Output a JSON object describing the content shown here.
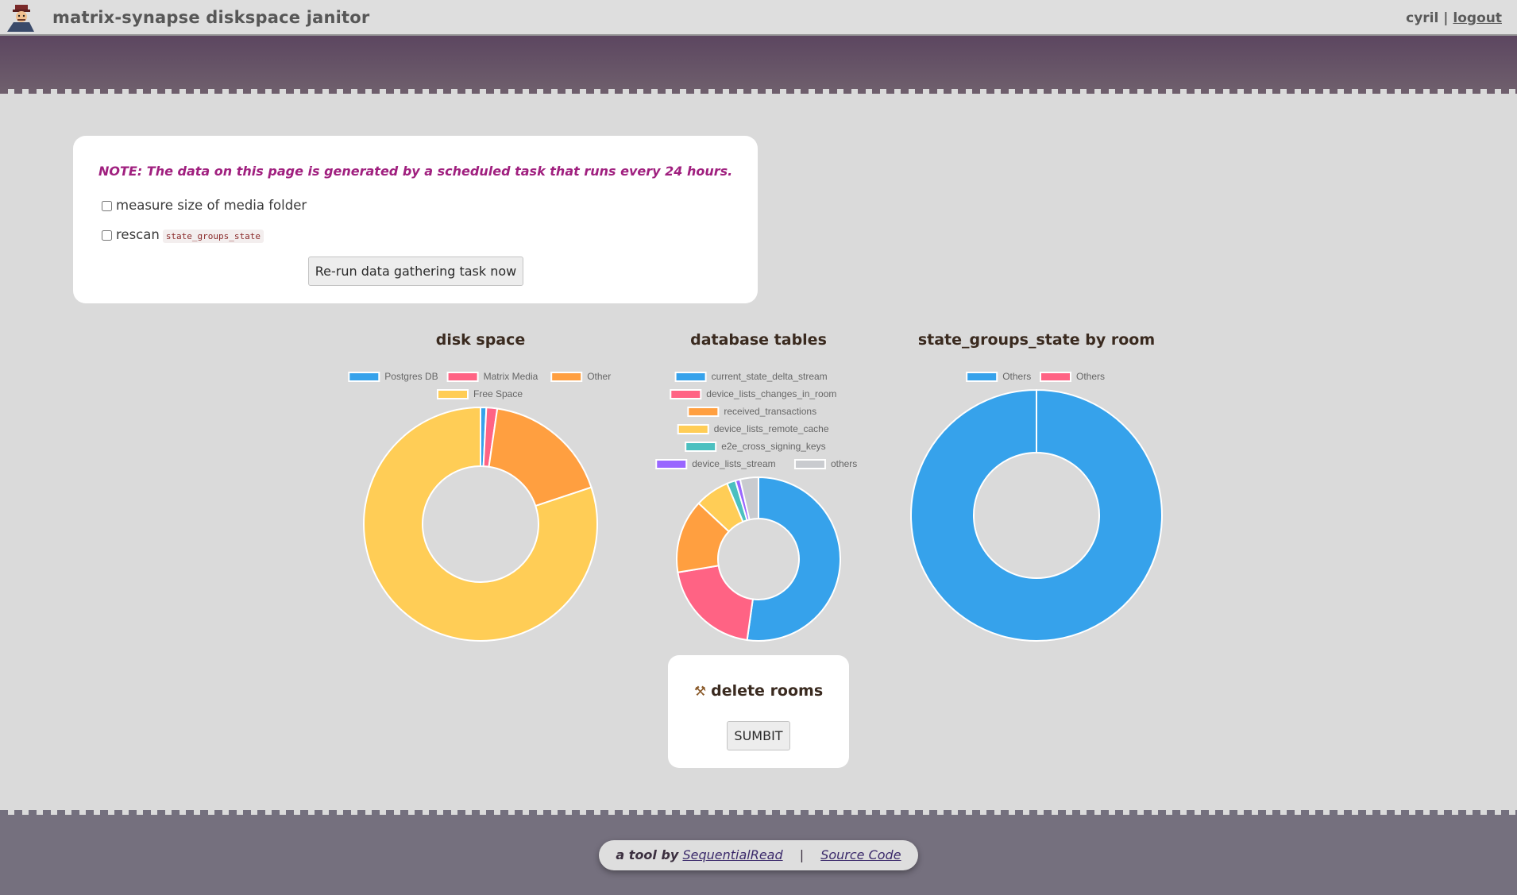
{
  "header": {
    "title": "matrix-synapse diskspace janitor",
    "user": "cyril",
    "separator": "|",
    "logout_label": "logout"
  },
  "note": {
    "text": "NOTE: The data on this page is generated by a scheduled task that runs every 24 hours.",
    "option_media": "measure size of media folder",
    "option_rescan": "rescan",
    "option_rescan_code": "state_groups_state",
    "rerun_label": "Re-run data gathering task now"
  },
  "charts": {
    "disk": {
      "title": "disk space"
    },
    "tables": {
      "title": "database tables"
    },
    "state": {
      "title": "state_groups_state by room"
    }
  },
  "chart_data": [
    {
      "type": "pie",
      "title": "disk space",
      "labels": [
        "Postgres DB",
        "Matrix Media",
        "Other",
        "Free Space"
      ],
      "values": [
        0.8,
        1.5,
        17.6,
        80.1
      ],
      "colors": [
        "#36a2eb",
        "#ff6384",
        "#ff9f40",
        "#ffcd56"
      ]
    },
    {
      "type": "pie",
      "title": "database tables",
      "labels": [
        "current_state_delta_stream",
        "device_lists_changes_in_room",
        "received_transactions",
        "device_lists_remote_cache",
        "e2e_cross_signing_keys",
        "device_lists_stream",
        "others"
      ],
      "values": [
        49.2,
        19.0,
        13.7,
        6.4,
        1.6,
        0.9,
        3.4
      ],
      "colors": [
        "#36a2eb",
        "#ff6384",
        "#ff9f40",
        "#ffcd56",
        "#4bc0c0",
        "#9966ff",
        "#c9cbcf"
      ]
    },
    {
      "type": "pie",
      "title": "state_groups_state by room",
      "labels": [
        "Others",
        "Others"
      ],
      "values": [
        100,
        0
      ],
      "colors": [
        "#36a2eb",
        "#ff6384"
      ]
    }
  ],
  "delete": {
    "title": "delete rooms",
    "submit_label": "SUMBIT"
  },
  "footer": {
    "prefix": "a tool by",
    "author": "SequentialRead",
    "separator": "|",
    "source": "Source Code"
  }
}
